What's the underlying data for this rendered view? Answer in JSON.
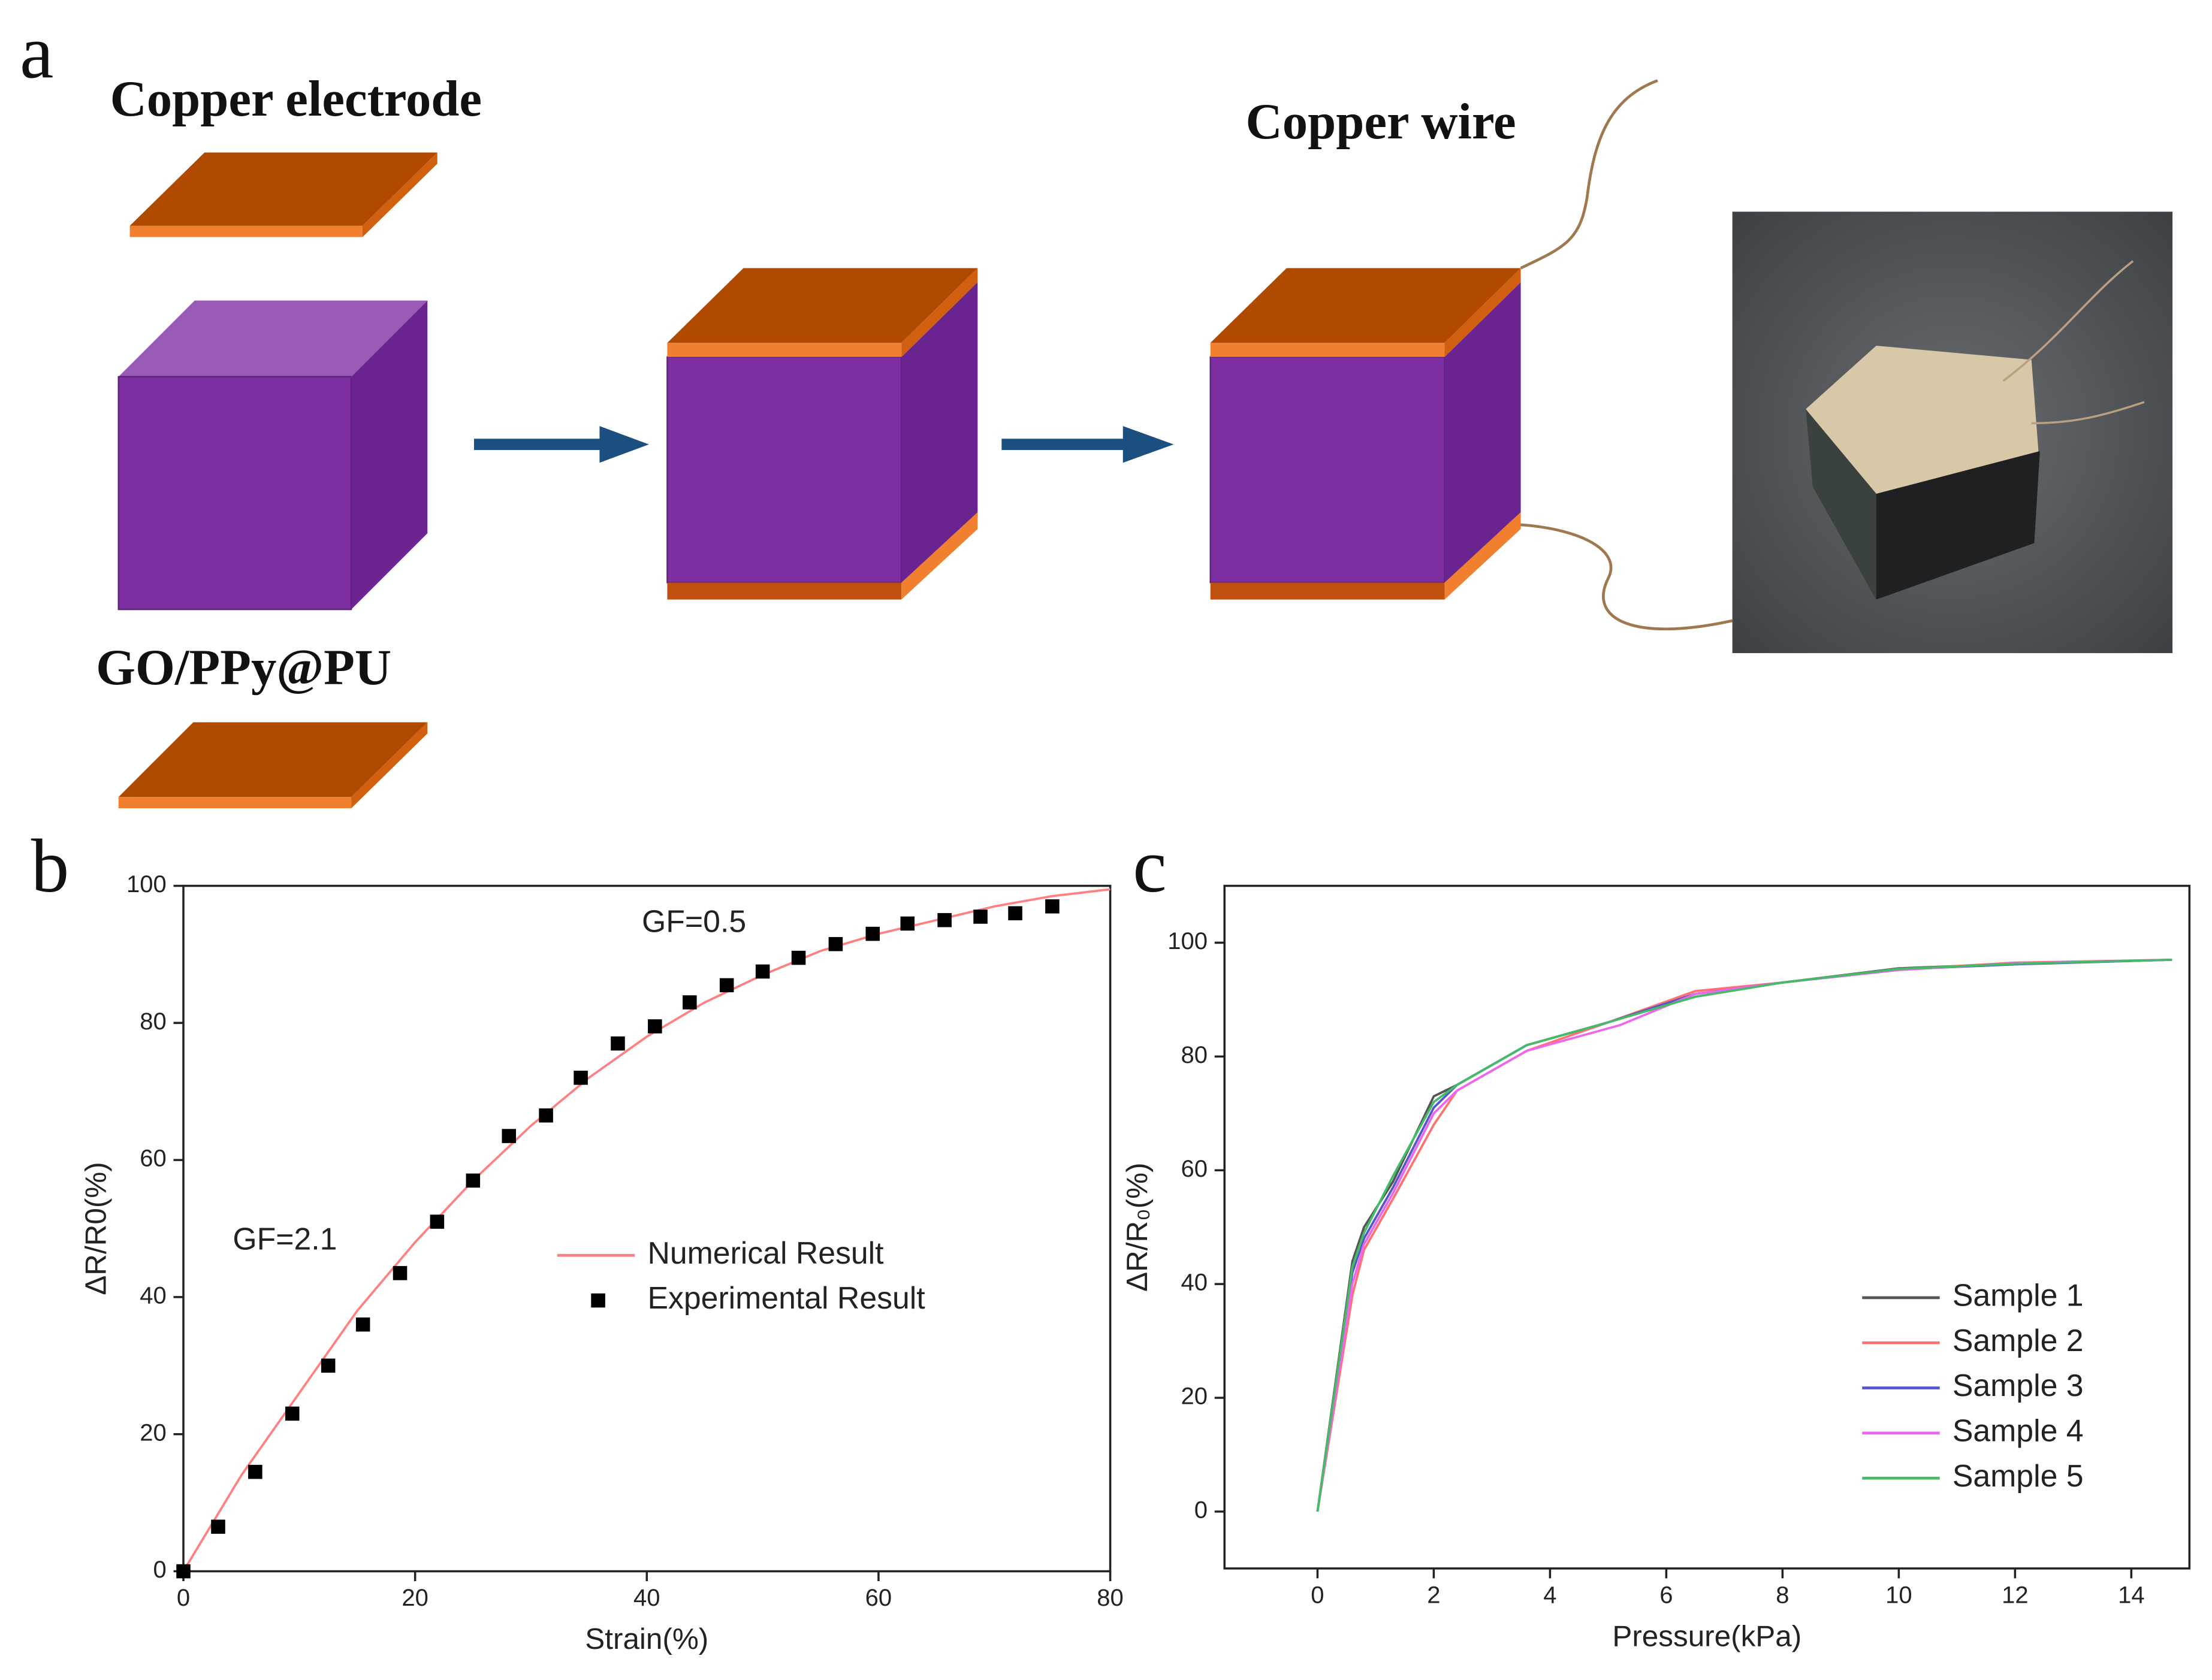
{
  "panels": [
    "a",
    "b",
    "c"
  ],
  "diagram": {
    "copper_electrode": "Copper electrode",
    "foam": "GO/PPy@PU",
    "copper_wire": "Copper wire"
  },
  "chart_data": [
    {
      "type": "scatter",
      "xlabel": "Strain(%)",
      "ylabel": "ΔR/R0(%)",
      "xlim": [
        0,
        80
      ],
      "ylim": [
        0,
        100
      ],
      "xticks": [
        0,
        20,
        40,
        60,
        80
      ],
      "yticks": [
        0,
        20,
        40,
        60,
        80,
        100
      ],
      "legend": "center right",
      "annotations": [
        "GF=2.1",
        "GF=0.5"
      ],
      "series": [
        {
          "name": "Numerical Result",
          "color": "#ff8080",
          "style": "line",
          "x": [
            0,
            5,
            10,
            15,
            20,
            25,
            30,
            35,
            40,
            45,
            50,
            55,
            60,
            65,
            70,
            75,
            80
          ],
          "values": [
            0,
            14,
            26,
            38,
            48,
            57,
            65,
            72,
            78,
            83,
            87,
            90.5,
            93,
            95,
            97,
            98.5,
            99.5
          ]
        },
        {
          "name": "Experimental Result",
          "color": "#000000",
          "style": "markers",
          "x": [
            0,
            3,
            6.2,
            9.4,
            12.5,
            15.5,
            18.7,
            21.9,
            25,
            28.1,
            31.3,
            34.3,
            37.5,
            40.7,
            43.7,
            46.9,
            50,
            53.1,
            56.3,
            59.5,
            62.5,
            65.7,
            68.8,
            71.8,
            75
          ],
          "values": [
            0,
            6.5,
            14.5,
            23,
            30,
            36,
            43.5,
            51,
            57,
            63.5,
            66.5,
            72,
            77,
            79.5,
            83,
            85.5,
            87.5,
            89.5,
            91.5,
            93,
            94.5,
            95,
            95.5,
            96,
            97
          ]
        }
      ]
    },
    {
      "type": "line",
      "xlabel": "Pressure(kPa)",
      "ylabel": "ΔR/R₀(%)",
      "xlim": [
        -1.6,
        15
      ],
      "ylim": [
        -10,
        110
      ],
      "xticks": [
        0,
        2,
        4,
        6,
        8,
        10,
        12,
        14
      ],
      "yticks": [
        0,
        20,
        40,
        60,
        80,
        100
      ],
      "legend": "lower right",
      "series": [
        {
          "name": "Sample 1",
          "color": "#555555",
          "x": [
            0,
            0.6,
            0.8,
            1.3,
            2,
            2.4,
            3.6,
            5,
            6.5,
            8,
            10,
            12,
            14.7
          ],
          "values": [
            0,
            44,
            50,
            58,
            73,
            75,
            82,
            86,
            91,
            93,
            95.5,
            96.3,
            97
          ]
        },
        {
          "name": "Sample 2",
          "color": "#ff7070",
          "x": [
            0,
            0.6,
            0.8,
            1.3,
            2,
            2.4,
            3.6,
            5,
            6.5,
            8,
            10,
            12,
            14.7
          ],
          "values": [
            0,
            38,
            46,
            55,
            68,
            74,
            81,
            86,
            91.5,
            93,
            95.3,
            96.5,
            97
          ]
        },
        {
          "name": "Sample 3",
          "color": "#5555cc",
          "x": [
            0,
            0.6,
            0.8,
            1.3,
            2,
            2.4,
            3.6,
            5,
            6.5,
            8,
            10,
            12,
            14.7
          ],
          "values": [
            0,
            42,
            48,
            57,
            71,
            75,
            82,
            86,
            91,
            93,
            95.3,
            96.2,
            97
          ]
        },
        {
          "name": "Sample 4",
          "color": "#ee66ee",
          "x": [
            0,
            0.6,
            0.8,
            1.3,
            2,
            2.4,
            3.6,
            5.2,
            6.5,
            8,
            10,
            12,
            14.7
          ],
          "values": [
            0,
            40,
            47,
            56,
            70,
            74,
            81,
            85.5,
            91,
            93,
            95.2,
            96.4,
            97
          ]
        },
        {
          "name": "Sample 5",
          "color": "#44bb66",
          "x": [
            0,
            0.6,
            0.8,
            1.3,
            2,
            2.4,
            3.6,
            5,
            6.5,
            8,
            10,
            12,
            14.7
          ],
          "values": [
            0,
            43,
            49,
            59,
            72,
            75,
            82,
            86,
            90.5,
            93,
            95.4,
            96.3,
            97
          ]
        }
      ]
    }
  ]
}
